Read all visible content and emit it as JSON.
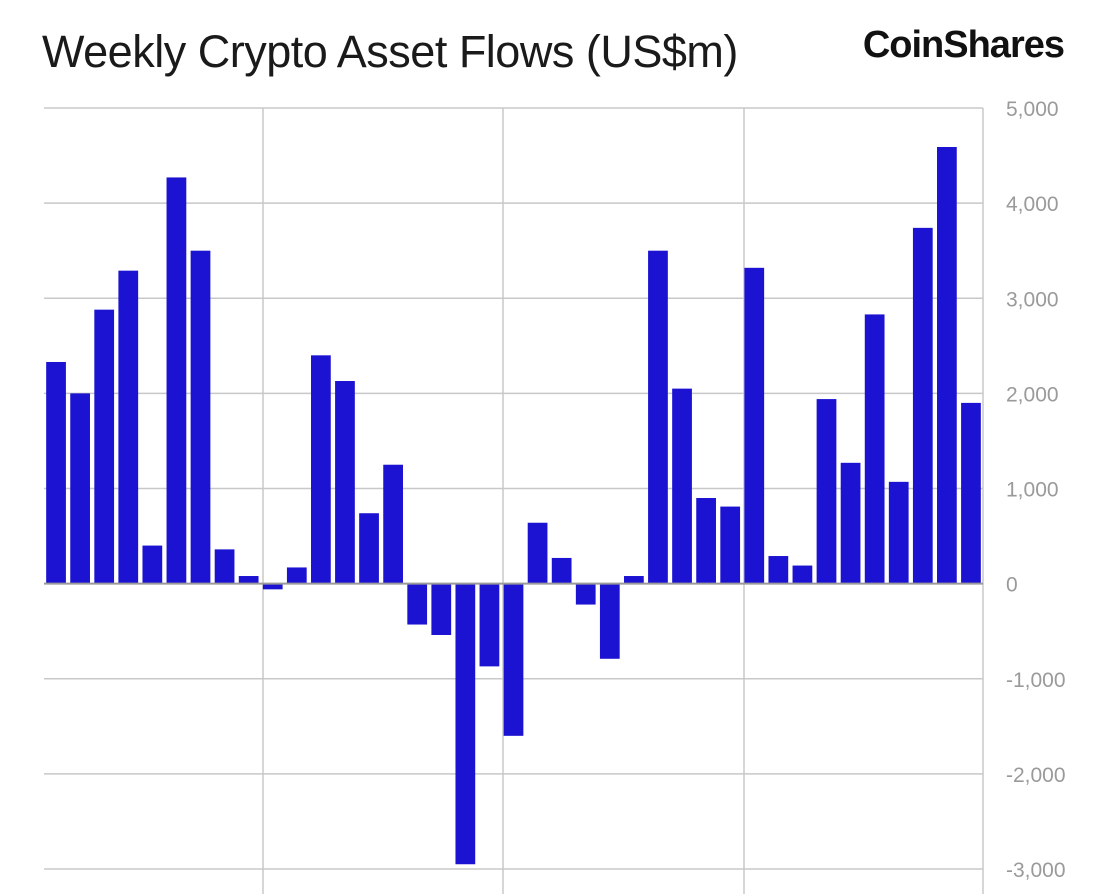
{
  "title": "Weekly Crypto Asset Flows (US$m)",
  "brand": "CoinShares",
  "chart_data": {
    "type": "bar",
    "title": "Weekly Crypto Asset Flows (US$m)",
    "xlabel": "",
    "ylabel": "",
    "ylim": [
      -3000,
      5000
    ],
    "yticks": [
      5000,
      4000,
      3000,
      2000,
      1000,
      0,
      -1000,
      -2000,
      -3000
    ],
    "ytick_labels": [
      "5,000",
      "4,000",
      "3,000",
      "2,000",
      "1,000",
      "0",
      "-1,000",
      "-2,000",
      "-3,000"
    ],
    "grid": true,
    "color": "#1c12d1",
    "values": [
      2330,
      2000,
      2880,
      3290,
      400,
      4270,
      3500,
      360,
      80,
      -60,
      170,
      2400,
      2130,
      740,
      1250,
      -430,
      -540,
      -2950,
      -870,
      -1600,
      640,
      270,
      -220,
      -790,
      80,
      3500,
      2050,
      900,
      810,
      3320,
      290,
      190,
      1940,
      1270,
      2830,
      1070,
      3740,
      4590,
      1900
    ]
  }
}
